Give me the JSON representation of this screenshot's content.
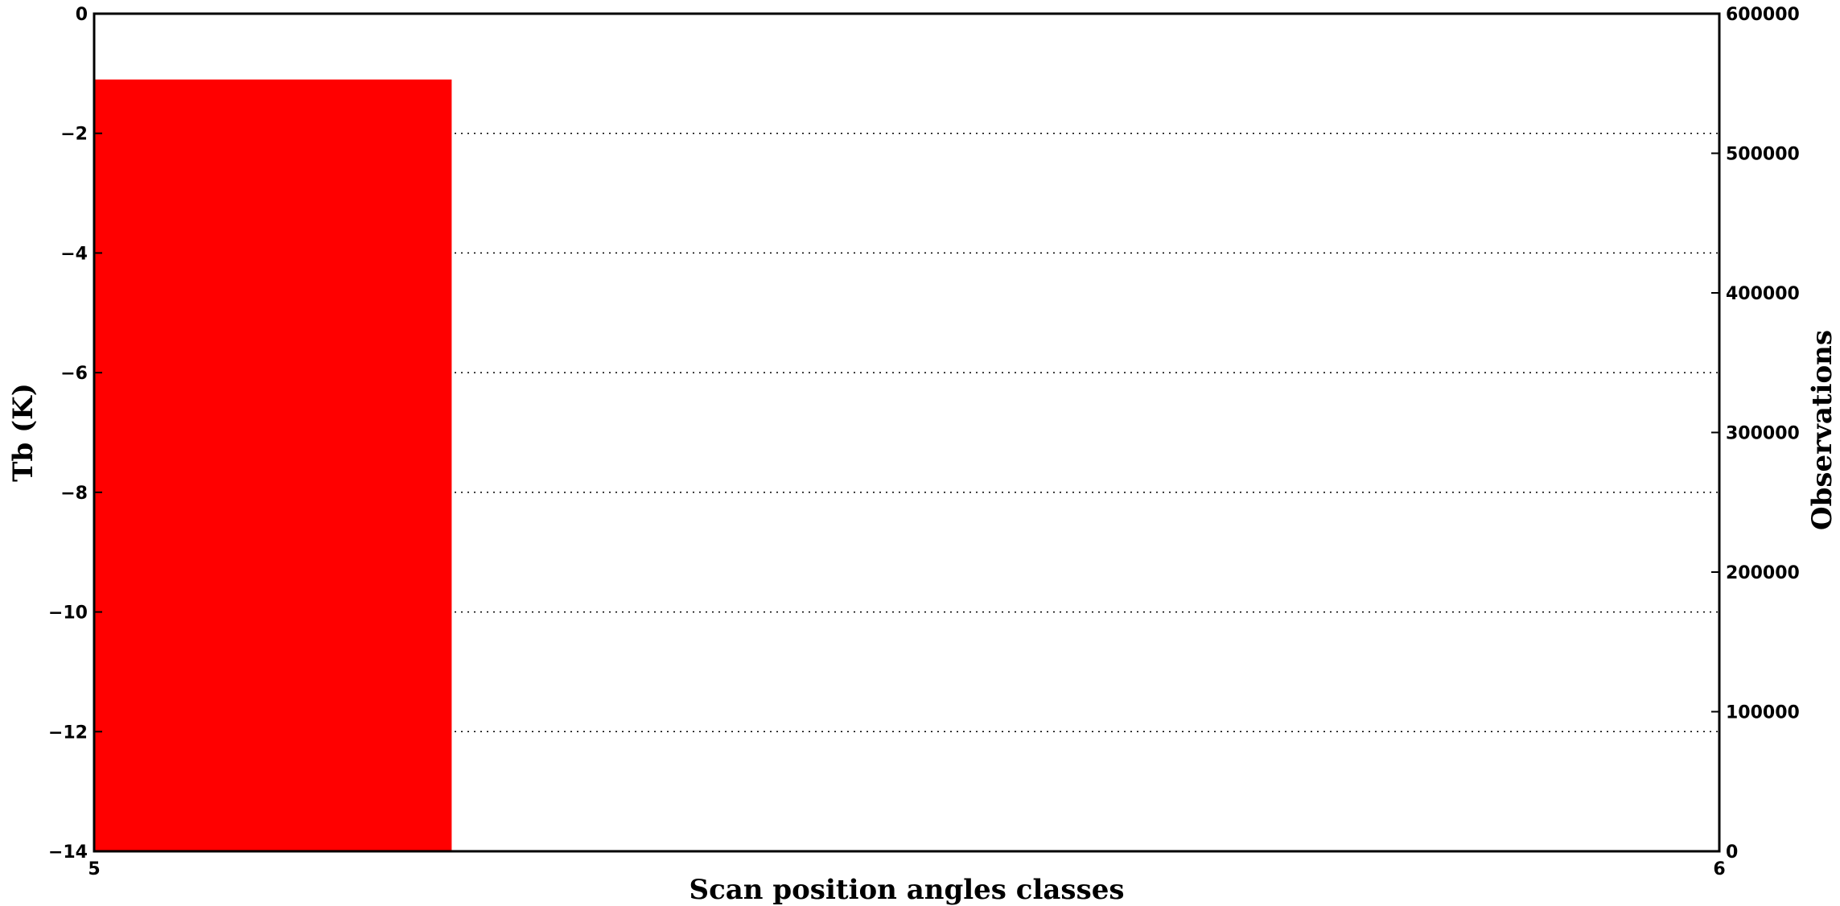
{
  "chart_data": {
    "type": "bar",
    "x": [
      5
    ],
    "xlim": [
      5,
      6
    ],
    "xticks": [
      5,
      6
    ],
    "bar_width": 0.22,
    "values": [
      -1.1
    ],
    "ylim": [
      -14,
      0
    ],
    "yticks": [
      0,
      -2,
      -4,
      -6,
      -8,
      -10,
      -12,
      -14
    ],
    "y2lim": [
      0,
      600000
    ],
    "y2ticks": [
      0,
      100000,
      200000,
      300000,
      400000,
      500000,
      600000
    ],
    "series_color": "#ff0000",
    "grid": "horizontal-dotted",
    "xlabel": "Scan position angles classes",
    "ylabel": "Tb (K)",
    "y2label": "Observations"
  }
}
